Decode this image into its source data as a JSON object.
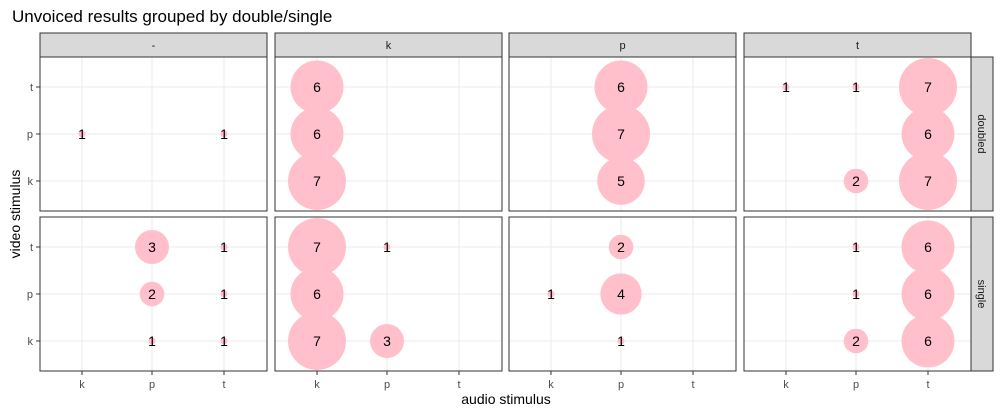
{
  "chart_data": {
    "type": "scatter",
    "title": "Unvoiced results grouped by double/single",
    "xlabel": "audio stimulus",
    "ylabel": "video stimulus",
    "x_categories": [
      "k",
      "p",
      "t"
    ],
    "y_categories": [
      "k",
      "p",
      "t"
    ],
    "col_facets": [
      "-",
      "k",
      "p",
      "t"
    ],
    "row_facets": [
      "doubled",
      "single"
    ],
    "size_range": [
      1,
      7
    ],
    "grid": true,
    "colors": {
      "bubble": "#ffc0cb",
      "strip": "#d9d9d9",
      "grid": "#ebebeb",
      "panel_border": "#333333"
    },
    "points": [
      {
        "row": "doubled",
        "col": "-",
        "x": "k",
        "y": "p",
        "n": 1
      },
      {
        "row": "doubled",
        "col": "-",
        "x": "t",
        "y": "p",
        "n": 1
      },
      {
        "row": "doubled",
        "col": "k",
        "x": "k",
        "y": "t",
        "n": 6
      },
      {
        "row": "doubled",
        "col": "k",
        "x": "k",
        "y": "p",
        "n": 6
      },
      {
        "row": "doubled",
        "col": "k",
        "x": "k",
        "y": "k",
        "n": 7
      },
      {
        "row": "doubled",
        "col": "p",
        "x": "p",
        "y": "t",
        "n": 6
      },
      {
        "row": "doubled",
        "col": "p",
        "x": "p",
        "y": "p",
        "n": 7
      },
      {
        "row": "doubled",
        "col": "p",
        "x": "p",
        "y": "k",
        "n": 5
      },
      {
        "row": "doubled",
        "col": "t",
        "x": "k",
        "y": "t",
        "n": 1
      },
      {
        "row": "doubled",
        "col": "t",
        "x": "p",
        "y": "t",
        "n": 1
      },
      {
        "row": "doubled",
        "col": "t",
        "x": "t",
        "y": "t",
        "n": 7
      },
      {
        "row": "doubled",
        "col": "t",
        "x": "t",
        "y": "p",
        "n": 6
      },
      {
        "row": "doubled",
        "col": "t",
        "x": "p",
        "y": "k",
        "n": 2
      },
      {
        "row": "doubled",
        "col": "t",
        "x": "t",
        "y": "k",
        "n": 7
      },
      {
        "row": "single",
        "col": "-",
        "x": "p",
        "y": "t",
        "n": 3
      },
      {
        "row": "single",
        "col": "-",
        "x": "t",
        "y": "t",
        "n": 1
      },
      {
        "row": "single",
        "col": "-",
        "x": "p",
        "y": "p",
        "n": 2
      },
      {
        "row": "single",
        "col": "-",
        "x": "t",
        "y": "p",
        "n": 1
      },
      {
        "row": "single",
        "col": "-",
        "x": "p",
        "y": "k",
        "n": 1
      },
      {
        "row": "single",
        "col": "-",
        "x": "t",
        "y": "k",
        "n": 1
      },
      {
        "row": "single",
        "col": "k",
        "x": "k",
        "y": "t",
        "n": 7
      },
      {
        "row": "single",
        "col": "k",
        "x": "p",
        "y": "t",
        "n": 1
      },
      {
        "row": "single",
        "col": "k",
        "x": "k",
        "y": "p",
        "n": 6
      },
      {
        "row": "single",
        "col": "k",
        "x": "k",
        "y": "k",
        "n": 7
      },
      {
        "row": "single",
        "col": "k",
        "x": "p",
        "y": "k",
        "n": 3
      },
      {
        "row": "single",
        "col": "p",
        "x": "p",
        "y": "t",
        "n": 2
      },
      {
        "row": "single",
        "col": "p",
        "x": "k",
        "y": "p",
        "n": 1
      },
      {
        "row": "single",
        "col": "p",
        "x": "p",
        "y": "p",
        "n": 4
      },
      {
        "row": "single",
        "col": "p",
        "x": "p",
        "y": "k",
        "n": 1
      },
      {
        "row": "single",
        "col": "t",
        "x": "p",
        "y": "t",
        "n": 1
      },
      {
        "row": "single",
        "col": "t",
        "x": "t",
        "y": "t",
        "n": 6
      },
      {
        "row": "single",
        "col": "t",
        "x": "p",
        "y": "p",
        "n": 1
      },
      {
        "row": "single",
        "col": "t",
        "x": "t",
        "y": "p",
        "n": 6
      },
      {
        "row": "single",
        "col": "t",
        "x": "p",
        "y": "k",
        "n": 2
      },
      {
        "row": "single",
        "col": "t",
        "x": "t",
        "y": "k",
        "n": 6
      }
    ]
  }
}
